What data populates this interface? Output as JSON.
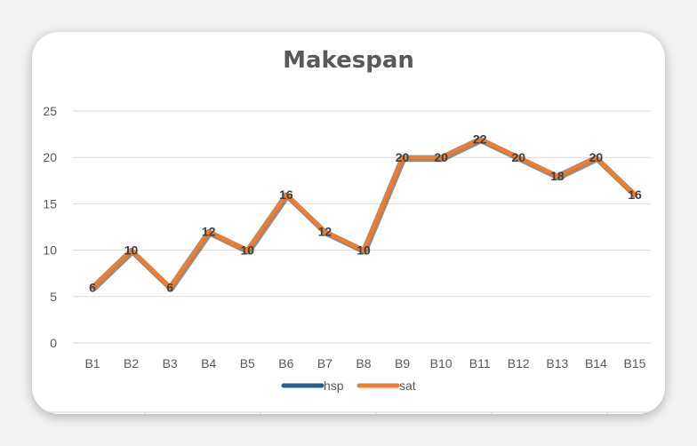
{
  "chart_data": {
    "type": "line",
    "title": "Makespan",
    "xlabel": "",
    "ylabel": "",
    "categories": [
      "B1",
      "B2",
      "B3",
      "B4",
      "B5",
      "B6",
      "B7",
      "B8",
      "B9",
      "B10",
      "B11",
      "B12",
      "B13",
      "B14",
      "B15"
    ],
    "series": [
      {
        "name": "hsp",
        "color": "#255e91",
        "values": [
          6,
          10,
          6,
          12,
          10,
          16,
          12,
          10,
          20,
          20,
          22,
          20,
          18,
          20,
          16
        ]
      },
      {
        "name": "sat",
        "color": "#ed7d31",
        "values": [
          6,
          10,
          6,
          12,
          10,
          16,
          12,
          10,
          20,
          20,
          22,
          20,
          18,
          20,
          16
        ]
      }
    ],
    "data_labels": [
      6,
      10,
      6,
      12,
      10,
      16,
      12,
      10,
      20,
      20,
      22,
      20,
      18,
      20,
      16
    ],
    "ylim": [
      0,
      25
    ],
    "yticks": [
      0,
      5,
      10,
      15,
      20,
      25
    ],
    "grid": true,
    "legend_position": "bottom"
  }
}
